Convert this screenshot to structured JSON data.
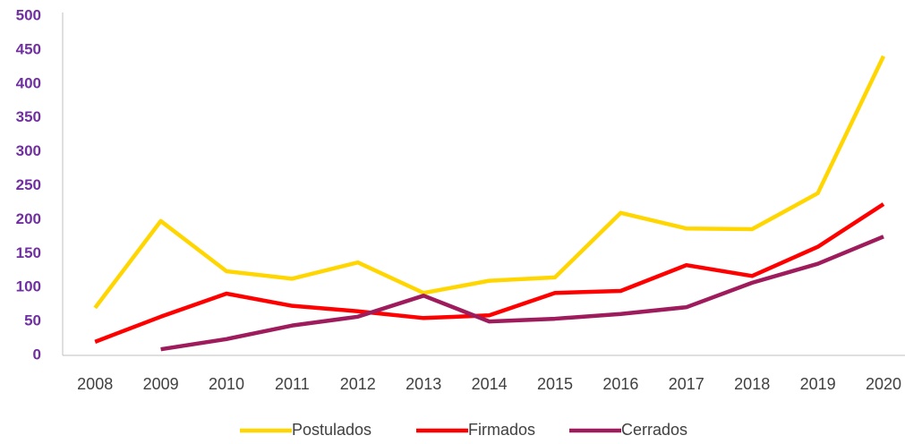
{
  "chart_data": {
    "type": "line",
    "categories": [
      "2008",
      "2009",
      "2010",
      "2011",
      "2012",
      "2013",
      "2014",
      "2015",
      "2016",
      "2017",
      "2018",
      "2019",
      "2020"
    ],
    "series": [
      {
        "name": "Postulados",
        "color": "#FFD600",
        "values": [
          70,
          198,
          124,
          113,
          137,
          92,
          110,
          115,
          210,
          187,
          186,
          239,
          441
        ]
      },
      {
        "name": "Firmados",
        "color": "#FF0000",
        "values": [
          20,
          57,
          91,
          73,
          65,
          55,
          59,
          92,
          95,
          133,
          117,
          160,
          223
        ]
      },
      {
        "name": "Cerrados",
        "color": "#9E1B5C",
        "values": [
          null,
          9,
          24,
          44,
          57,
          88,
          50,
          54,
          61,
          71,
          107,
          135,
          175
        ]
      }
    ],
    "ylim": [
      0,
      500
    ],
    "yticks": [
      0,
      50,
      100,
      150,
      200,
      250,
      300,
      350,
      400,
      450,
      500
    ],
    "legend": "bottom"
  }
}
